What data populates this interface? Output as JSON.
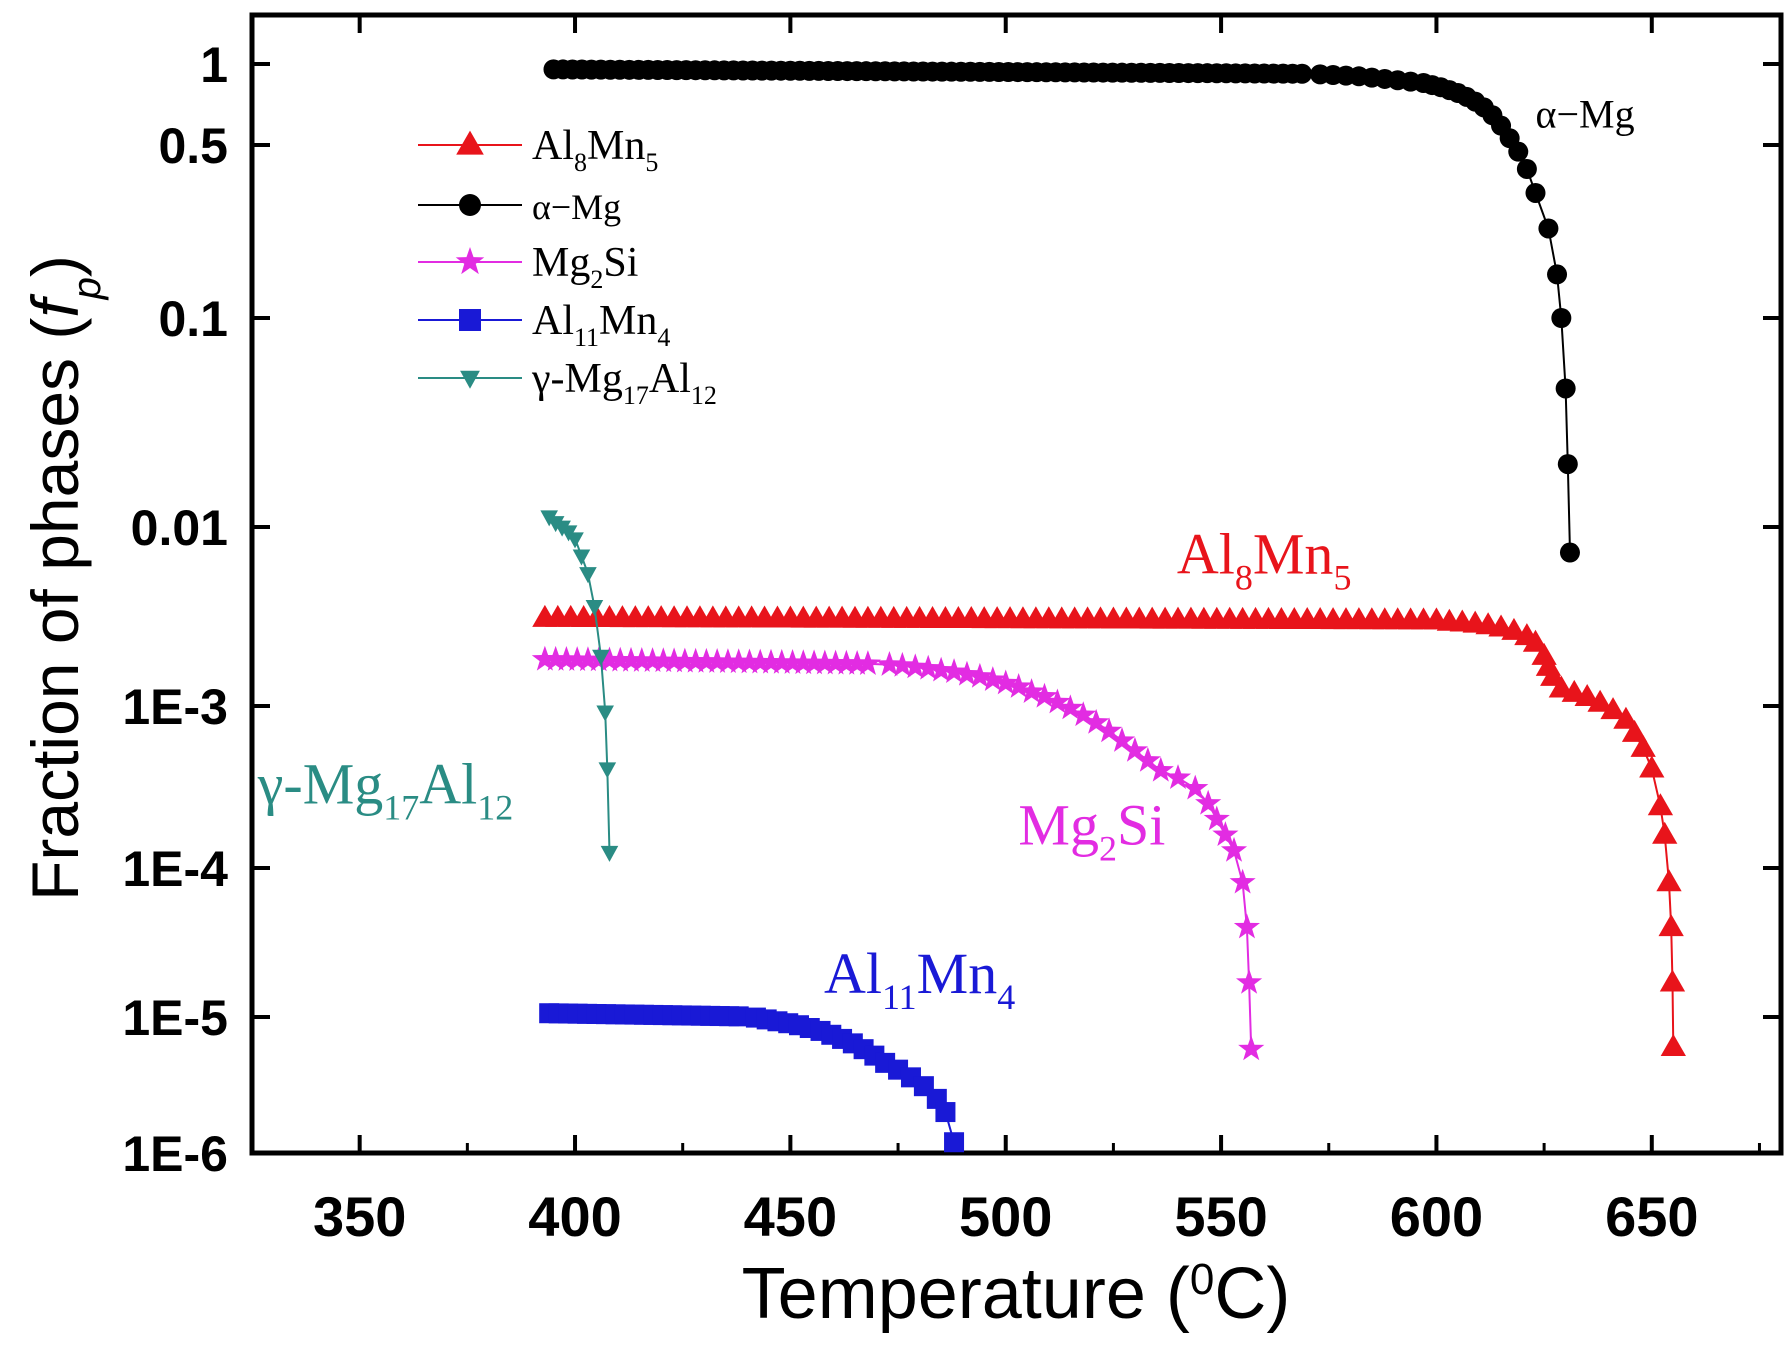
{
  "chart_data": {
    "type": "scatter",
    "xlabel": "Temperature (",
    "xlabel_unit_sup": "0",
    "xlabel_unit": "C)",
    "ylabel": "Fraction of phases  (",
    "ylabel_var": "f",
    "ylabel_sub": "p",
    "ylabel_close": ")",
    "xlim": [
      325,
      680
    ],
    "ylim": [
      1e-06,
      1.5
    ],
    "yscale": "log",
    "grid": false,
    "legend_position": "top-left",
    "x_ticks": [
      350,
      400,
      450,
      500,
      550,
      600,
      650
    ],
    "x_tick_labels": [
      "350",
      "400",
      "450",
      "500",
      "550",
      "600",
      "650"
    ],
    "y_ticks": [
      1,
      0.5,
      0.1,
      0.01,
      0.001,
      0.0001,
      1e-05,
      1e-06
    ],
    "y_tick_labels": [
      "1",
      "0.5",
      "0.1",
      "0.01",
      "1E-3",
      "1E-4",
      "1E-5",
      "1E-6"
    ],
    "series": [
      {
        "name": "Al8Mn5",
        "label_parts": [
          {
            "t": "Al"
          },
          {
            "t": "8",
            "sub": true
          },
          {
            "t": "Mn"
          },
          {
            "t": "5",
            "sub": true
          }
        ],
        "color": "#e8141b",
        "marker": "triangle-up",
        "plateau": {
          "x_start": 393,
          "x_end": 600,
          "y_start": 0.0031,
          "y_end": 0.003,
          "step": 3
        },
        "points": [
          [
            603,
            0.00295
          ],
          [
            606,
            0.00292
          ],
          [
            609,
            0.00288
          ],
          [
            612,
            0.00282
          ],
          [
            615,
            0.00274
          ],
          [
            618,
            0.00262
          ],
          [
            621,
            0.00245
          ],
          [
            623,
            0.00225
          ],
          [
            625,
            0.0019
          ],
          [
            626,
            0.00165
          ],
          [
            627,
            0.00145
          ],
          [
            629,
            0.00125
          ],
          [
            632,
            0.00118
          ],
          [
            635,
            0.00112
          ],
          [
            638,
            0.00104
          ],
          [
            641,
            0.00094
          ],
          [
            644,
            0.00082
          ],
          [
            646,
            0.00068
          ],
          [
            648,
            0.00055
          ],
          [
            650,
            0.00041
          ],
          [
            652,
            0.00024
          ],
          [
            653,
            0.00016
          ],
          [
            654,
            8e-05
          ],
          [
            654.5,
            4e-05
          ],
          [
            654.8,
            1.7e-05
          ],
          [
            655,
            6e-06
          ]
        ]
      },
      {
        "name": "α−Mg",
        "label_parts": [
          {
            "t": "α−Mg"
          }
        ],
        "color": "#000000",
        "marker": "circle",
        "plateau": {
          "x_start": 395,
          "x_end": 570,
          "y_start": 0.955,
          "y_end": 0.92,
          "step": 2.2
        },
        "points": [
          [
            573,
            0.915
          ],
          [
            576,
            0.91
          ],
          [
            579,
            0.905
          ],
          [
            582,
            0.9
          ],
          [
            585,
            0.89
          ],
          [
            588,
            0.88
          ],
          [
            591,
            0.87
          ],
          [
            594,
            0.86
          ],
          [
            597,
            0.85
          ],
          [
            599,
            0.835
          ],
          [
            601,
            0.82
          ],
          [
            603,
            0.8
          ],
          [
            605,
            0.78
          ],
          [
            607,
            0.755
          ],
          [
            609,
            0.725
          ],
          [
            611,
            0.69
          ],
          [
            613,
            0.645
          ],
          [
            615,
            0.59
          ],
          [
            617,
            0.53
          ],
          [
            619,
            0.47
          ],
          [
            621,
            0.4
          ],
          [
            623,
            0.32
          ],
          [
            626,
            0.23
          ],
          [
            628,
            0.15
          ],
          [
            629,
            0.1
          ],
          [
            630,
            0.046
          ],
          [
            630.5,
            0.02
          ],
          [
            631,
            0.0072
          ]
        ]
      },
      {
        "name": "Mg2Si",
        "label_parts": [
          {
            "t": "Mg"
          },
          {
            "t": "2",
            "sub": true
          },
          {
            "t": "Si"
          }
        ],
        "color": "#e22ce2",
        "marker": "star",
        "plateau": {
          "x_start": 393,
          "x_end": 470,
          "y_start": 0.00182,
          "y_end": 0.00172,
          "step": 2.5
        },
        "points": [
          [
            473,
            0.0017
          ],
          [
            476,
            0.00168
          ],
          [
            479,
            0.00165
          ],
          [
            482,
            0.00162
          ],
          [
            485,
            0.00158
          ],
          [
            488,
            0.00155
          ],
          [
            491,
            0.0015
          ],
          [
            494,
            0.00146
          ],
          [
            497,
            0.0014
          ],
          [
            500,
            0.00134
          ],
          [
            503,
            0.00128
          ],
          [
            506,
            0.0012
          ],
          [
            509,
            0.00113
          ],
          [
            512,
            0.00105
          ],
          [
            515,
            0.00097
          ],
          [
            518,
            0.00088
          ],
          [
            521,
            0.00079
          ],
          [
            524,
            0.0007
          ],
          [
            527,
            0.00061
          ],
          [
            530,
            0.00053
          ],
          [
            533,
            0.00046
          ],
          [
            536,
            0.0004
          ],
          [
            540,
            0.00036
          ],
          [
            544,
            0.00031
          ],
          [
            547,
            0.00025
          ],
          [
            549,
            0.0002
          ],
          [
            551,
            0.00016
          ],
          [
            553,
            0.000128
          ],
          [
            555,
            8e-05
          ],
          [
            556,
            4e-05
          ],
          [
            556.5,
            1.7e-05
          ],
          [
            557,
            5.8e-06
          ]
        ]
      },
      {
        "name": "Al11Mn4",
        "label_parts": [
          {
            "t": "Al"
          },
          {
            "t": "11",
            "sub": true
          },
          {
            "t": "Mn"
          },
          {
            "t": "4",
            "sub": true
          }
        ],
        "color": "#1919d6",
        "marker": "square",
        "plateau": {
          "x_start": 394,
          "x_end": 440,
          "y_start": 1.06e-05,
          "y_end": 1.01e-05,
          "step": 2.2
        },
        "points": [
          [
            442,
            9.9e-06
          ],
          [
            444.5,
            9.6e-06
          ],
          [
            447,
            9.3e-06
          ],
          [
            449.5,
            9e-06
          ],
          [
            452,
            8.7e-06
          ],
          [
            454.5,
            8.3e-06
          ],
          [
            457,
            7.9e-06
          ],
          [
            459.5,
            7.4e-06
          ],
          [
            462,
            6.9e-06
          ],
          [
            464.5,
            6.4e-06
          ],
          [
            467,
            5.8e-06
          ],
          [
            469.5,
            5.2e-06
          ],
          [
            472,
            4.6e-06
          ],
          [
            475,
            4.1e-06
          ],
          [
            478,
            3.6e-06
          ],
          [
            481,
            3.1e-06
          ],
          [
            484,
            2.5e-06
          ],
          [
            486,
            2e-06
          ],
          [
            488,
            1.2e-06
          ]
        ]
      },
      {
        "name": "γ-Mg17Al12",
        "label_parts": [
          {
            "t": "γ-Mg"
          },
          {
            "t": "17",
            "sub": true
          },
          {
            "t": "Al"
          },
          {
            "t": "12",
            "sub": true
          }
        ],
        "color": "#2a8c84",
        "marker": "triangle-down",
        "points": [
          [
            394,
            0.0112
          ],
          [
            395.5,
            0.0105
          ],
          [
            397,
            0.01
          ],
          [
            398.5,
            0.0094
          ],
          [
            400,
            0.0086
          ],
          [
            401.5,
            0.0069
          ],
          [
            403,
            0.0055
          ],
          [
            404.5,
            0.0036
          ],
          [
            406,
            0.0019
          ],
          [
            407,
            0.00092
          ],
          [
            407.5,
            0.00041
          ],
          [
            408,
            0.000125
          ]
        ]
      }
    ],
    "annotations": [
      {
        "series": 1,
        "x": 623,
        "y": 0.58,
        "anchor": "start"
      },
      {
        "series": 0,
        "x": 560,
        "y": 0.0055,
        "anchor": "middle"
      },
      {
        "series": 2,
        "x": 520,
        "y": 0.00014,
        "anchor": "middle"
      },
      {
        "series": 3,
        "x": 480,
        "y": 1.45e-05,
        "anchor": "middle"
      },
      {
        "series": 4,
        "x": 356,
        "y": 0.00025,
        "anchor": "middle"
      }
    ]
  }
}
